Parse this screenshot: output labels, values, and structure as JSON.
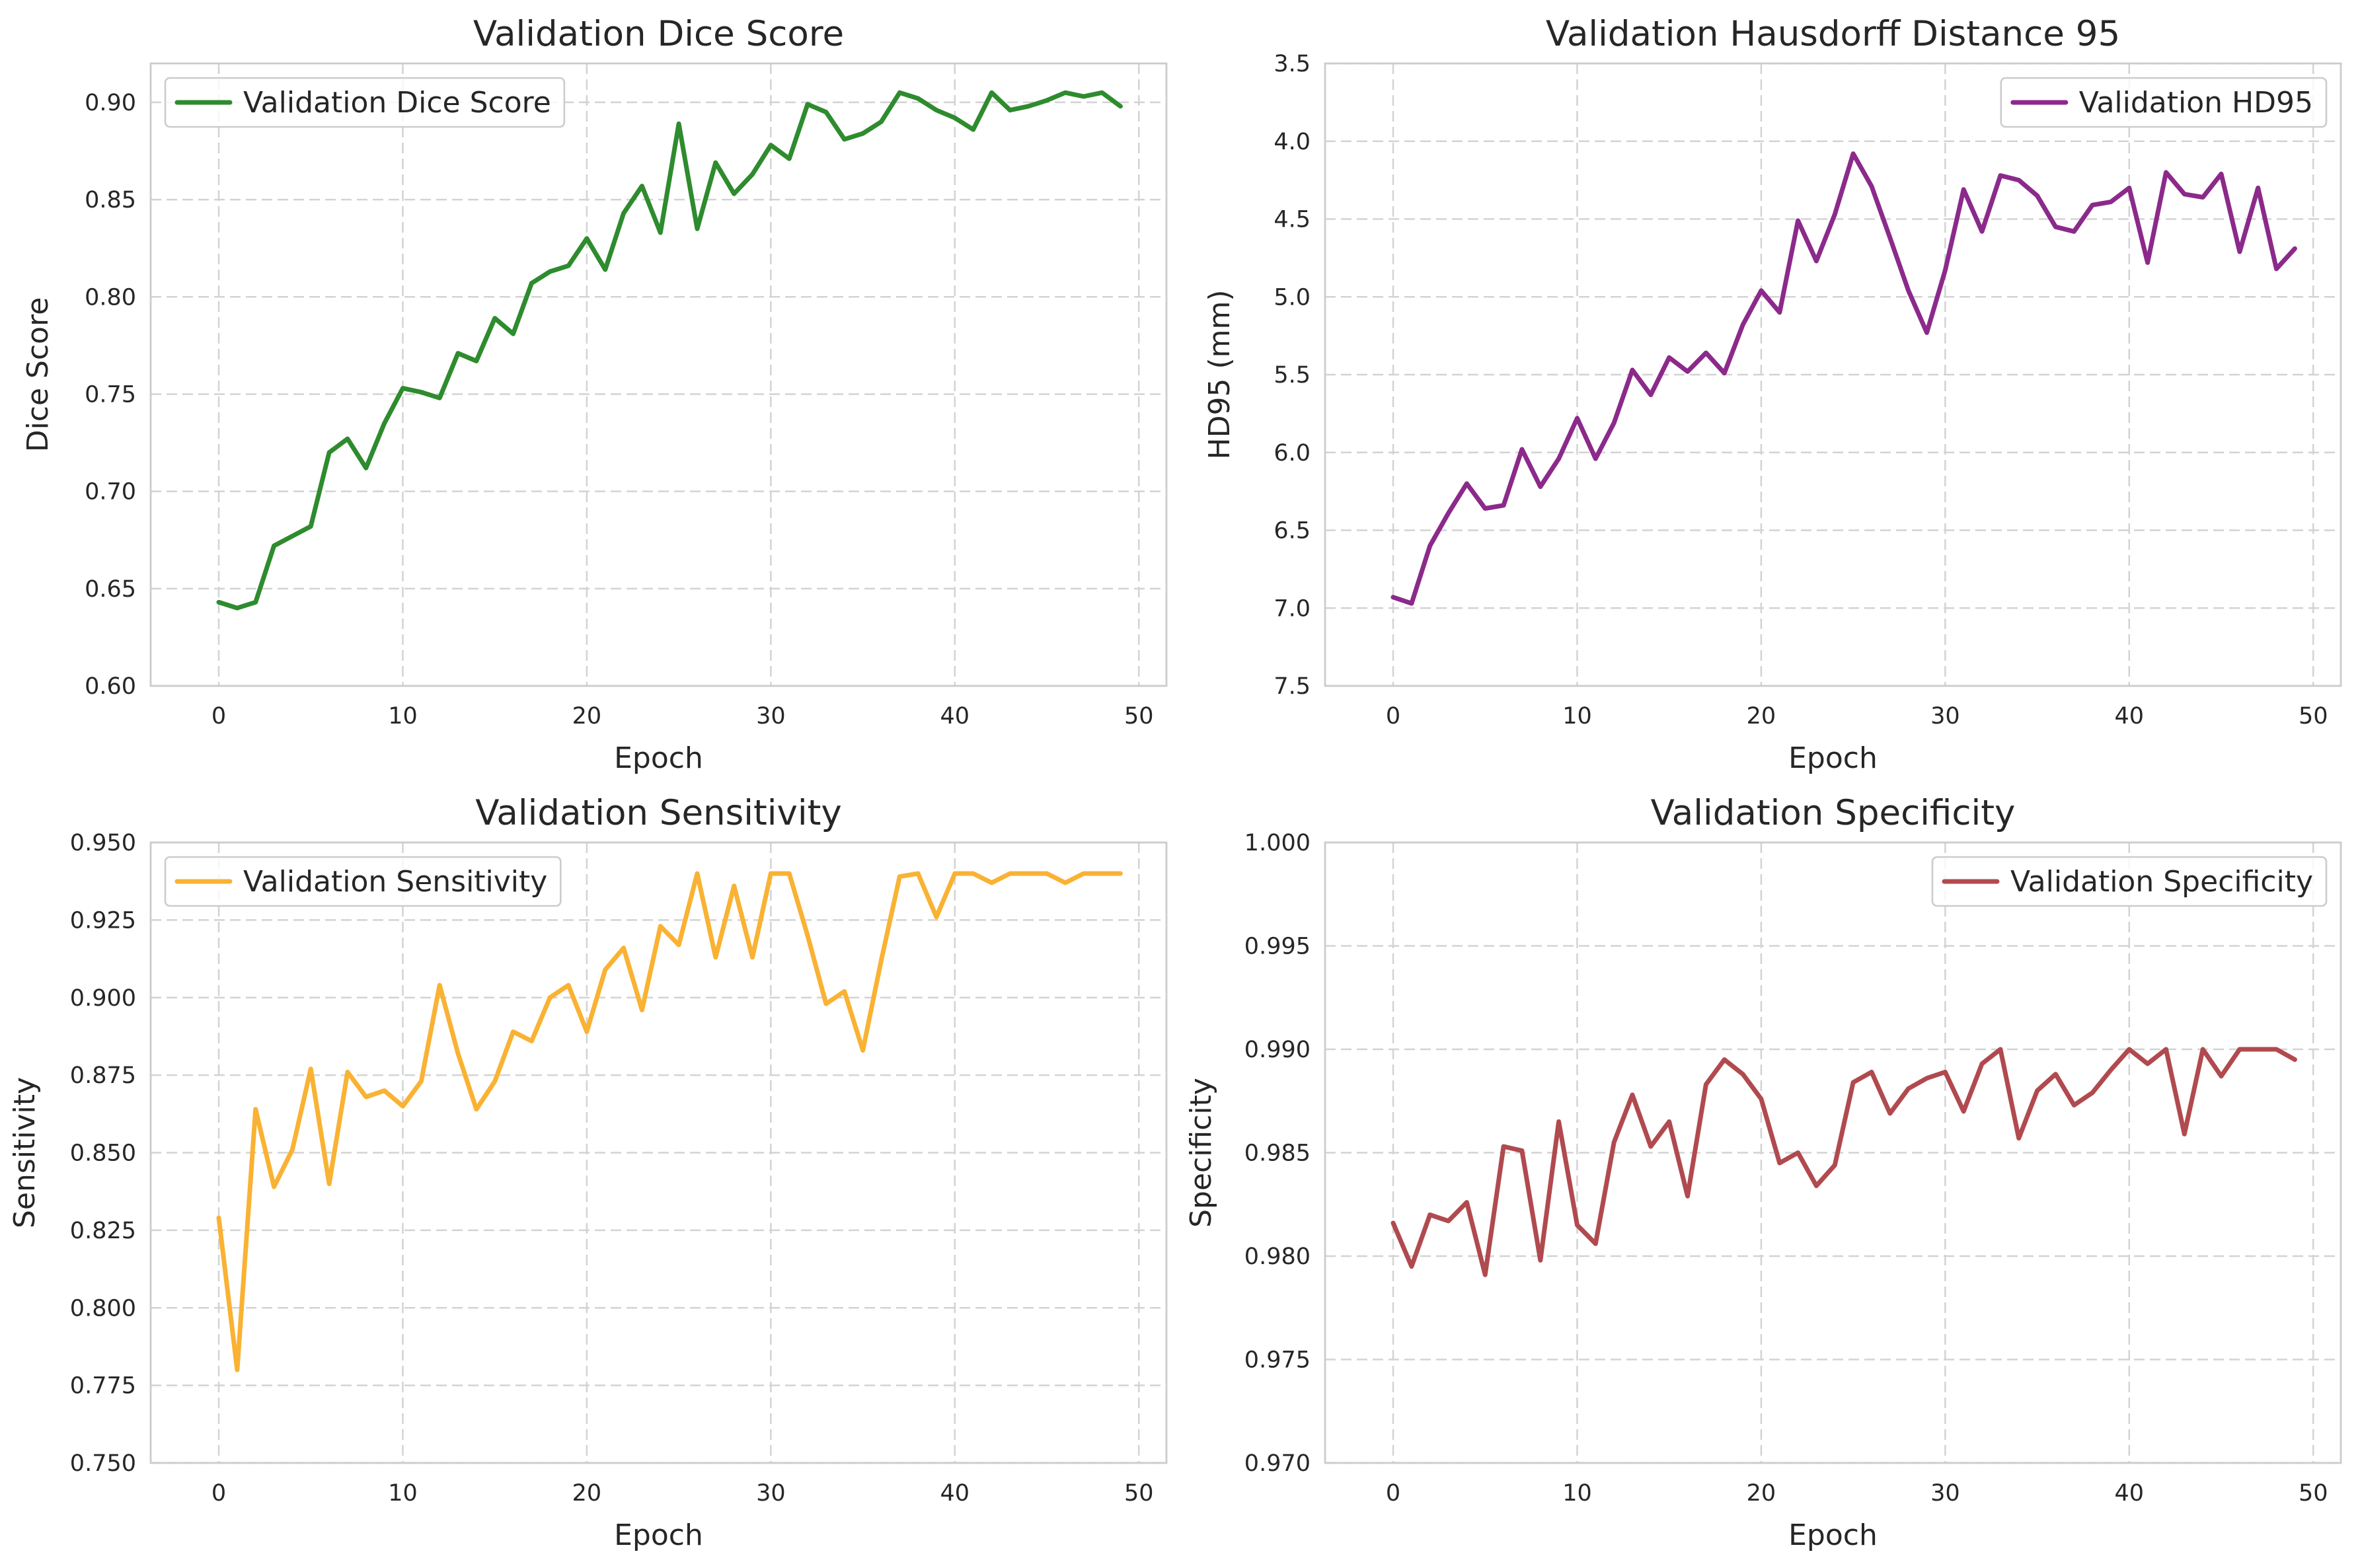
{
  "chart_data": [
    {
      "type": "line",
      "title": "Validation Dice Score",
      "xlabel": "Epoch",
      "ylabel": "Dice Score",
      "xlim": [
        -3.7,
        51.5
      ],
      "ylim": [
        0.6,
        0.92
      ],
      "xticks": [
        0,
        10,
        20,
        30,
        40,
        50
      ],
      "yticks": [
        0.6,
        0.65,
        0.7,
        0.75,
        0.8,
        0.85,
        0.9
      ],
      "ytick_decimals": 2,
      "y_inverted": false,
      "grid": true,
      "legend_position": "top-left",
      "x": [
        0,
        1,
        2,
        3,
        4,
        5,
        6,
        7,
        8,
        9,
        10,
        11,
        12,
        13,
        14,
        15,
        16,
        17,
        18,
        19,
        20,
        21,
        22,
        23,
        24,
        25,
        26,
        27,
        28,
        29,
        30,
        31,
        32,
        33,
        34,
        35,
        36,
        37,
        38,
        39,
        40,
        41,
        42,
        43,
        44,
        45,
        46,
        47,
        48,
        49
      ],
      "series": [
        {
          "name": "Validation Dice Score",
          "color": "#2e8b2e",
          "values": [
            0.643,
            0.64,
            0.643,
            0.672,
            0.677,
            0.682,
            0.72,
            0.727,
            0.712,
            0.735,
            0.753,
            0.751,
            0.748,
            0.771,
            0.767,
            0.789,
            0.781,
            0.807,
            0.813,
            0.816,
            0.83,
            0.814,
            0.843,
            0.857,
            0.833,
            0.889,
            0.835,
            0.869,
            0.853,
            0.863,
            0.878,
            0.871,
            0.899,
            0.895,
            0.881,
            0.884,
            0.89,
            0.905,
            0.902,
            0.896,
            0.892,
            0.886,
            0.905,
            0.896,
            0.898,
            0.901,
            0.905,
            0.903,
            0.905,
            0.898
          ]
        }
      ]
    },
    {
      "type": "line",
      "title": "Validation Hausdorff Distance 95",
      "xlabel": "Epoch",
      "ylabel": "HD95 (mm)",
      "xlim": [
        -3.7,
        51.5
      ],
      "ylim": [
        7.5,
        3.5
      ],
      "xticks": [
        0,
        10,
        20,
        30,
        40,
        50
      ],
      "yticks": [
        3.5,
        4.0,
        4.5,
        5.0,
        5.5,
        6.0,
        6.5,
        7.0,
        7.5
      ],
      "ytick_decimals": 1,
      "y_inverted": true,
      "grid": true,
      "legend_position": "top-right",
      "x": [
        0,
        1,
        2,
        3,
        4,
        5,
        6,
        7,
        8,
        9,
        10,
        11,
        12,
        13,
        14,
        15,
        16,
        17,
        18,
        19,
        20,
        21,
        22,
        23,
        24,
        25,
        26,
        27,
        28,
        29,
        30,
        31,
        32,
        33,
        34,
        35,
        36,
        37,
        38,
        39,
        40,
        41,
        42,
        43,
        44,
        45,
        46,
        47,
        48,
        49
      ],
      "series": [
        {
          "name": "Validation HD95",
          "color": "#8b2a8b",
          "values": [
            6.93,
            6.97,
            6.6,
            6.39,
            6.2,
            6.36,
            6.34,
            5.98,
            6.22,
            6.04,
            5.78,
            6.04,
            5.81,
            5.47,
            5.63,
            5.39,
            5.48,
            5.36,
            5.49,
            5.18,
            4.96,
            5.1,
            4.51,
            4.77,
            4.47,
            4.08,
            4.29,
            4.62,
            4.96,
            5.23,
            4.83,
            4.31,
            4.58,
            4.22,
            4.25,
            4.35,
            4.55,
            4.58,
            4.41,
            4.39,
            4.3,
            4.78,
            4.2,
            4.34,
            4.36,
            4.21,
            4.71,
            4.3,
            4.82,
            4.69
          ]
        }
      ]
    },
    {
      "type": "line",
      "title": "Validation Sensitivity",
      "xlabel": "Epoch",
      "ylabel": "Sensitivity",
      "xlim": [
        -3.7,
        51.5
      ],
      "ylim": [
        0.75,
        0.95
      ],
      "xticks": [
        0,
        10,
        20,
        30,
        40,
        50
      ],
      "yticks": [
        0.75,
        0.775,
        0.8,
        0.825,
        0.85,
        0.875,
        0.9,
        0.925,
        0.95
      ],
      "ytick_decimals": 3,
      "y_inverted": false,
      "grid": true,
      "legend_position": "top-left",
      "x": [
        0,
        1,
        2,
        3,
        4,
        5,
        6,
        7,
        8,
        9,
        10,
        11,
        12,
        13,
        14,
        15,
        16,
        17,
        18,
        19,
        20,
        21,
        22,
        23,
        24,
        25,
        26,
        27,
        28,
        29,
        30,
        31,
        32,
        33,
        34,
        35,
        36,
        37,
        38,
        39,
        40,
        41,
        42,
        43,
        44,
        45,
        46,
        47,
        48,
        49
      ],
      "series": [
        {
          "name": "Validation Sensitivity",
          "color": "#f9b233",
          "values": [
            0.829,
            0.78,
            0.864,
            0.839,
            0.851,
            0.877,
            0.84,
            0.876,
            0.868,
            0.87,
            0.865,
            0.873,
            0.904,
            0.882,
            0.864,
            0.873,
            0.889,
            0.886,
            0.9,
            0.904,
            0.889,
            0.909,
            0.916,
            0.896,
            0.923,
            0.917,
            0.94,
            0.913,
            0.936,
            0.913,
            0.94,
            0.94,
            0.92,
            0.898,
            0.902,
            0.883,
            0.912,
            0.939,
            0.94,
            0.926,
            0.94,
            0.94,
            0.937,
            0.94,
            0.94,
            0.94,
            0.937,
            0.94,
            0.94,
            0.94
          ]
        }
      ]
    },
    {
      "type": "line",
      "title": "Validation Specificity",
      "xlabel": "Epoch",
      "ylabel": "Specificity",
      "xlim": [
        -3.7,
        51.5
      ],
      "ylim": [
        0.97,
        1.0
      ],
      "xticks": [
        0,
        10,
        20,
        30,
        40,
        50
      ],
      "yticks": [
        0.97,
        0.975,
        0.98,
        0.985,
        0.99,
        0.995,
        1.0
      ],
      "ytick_decimals": 3,
      "y_inverted": false,
      "grid": true,
      "legend_position": "top-right",
      "x": [
        0,
        1,
        2,
        3,
        4,
        5,
        6,
        7,
        8,
        9,
        10,
        11,
        12,
        13,
        14,
        15,
        16,
        17,
        18,
        19,
        20,
        21,
        22,
        23,
        24,
        25,
        26,
        27,
        28,
        29,
        30,
        31,
        32,
        33,
        34,
        35,
        36,
        37,
        38,
        39,
        40,
        41,
        42,
        43,
        44,
        45,
        46,
        47,
        48,
        49
      ],
      "series": [
        {
          "name": "Validation Specificity",
          "color": "#b04a4f",
          "values": [
            0.9816,
            0.9795,
            0.982,
            0.9817,
            0.9826,
            0.9791,
            0.9853,
            0.9851,
            0.9798,
            0.9865,
            0.9815,
            0.9806,
            0.9855,
            0.9878,
            0.9853,
            0.9865,
            0.9829,
            0.9883,
            0.9895,
            0.9888,
            0.9876,
            0.9845,
            0.985,
            0.9834,
            0.9844,
            0.9884,
            0.9889,
            0.9869,
            0.9881,
            0.9886,
            0.9889,
            0.987,
            0.9893,
            0.99,
            0.9857,
            0.988,
            0.9888,
            0.9873,
            0.9879,
            0.989,
            0.99,
            0.9893,
            0.99,
            0.9859,
            0.99,
            0.9887,
            0.99,
            0.99,
            0.99,
            0.9895
          ]
        }
      ]
    }
  ]
}
